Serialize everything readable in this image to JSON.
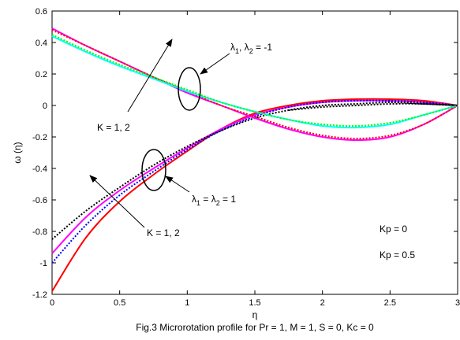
{
  "chart_data": {
    "type": "line",
    "xlabel": "η",
    "ylabel": "ω (η)",
    "caption": "Fig.3 Microrotation profile for Pr = 1, M = 1, S = 0, Kc = 0",
    "xlim": [
      0,
      3
    ],
    "ylim": [
      -1.2,
      0.6
    ],
    "xticks": [
      0,
      0.5,
      1,
      1.5,
      2,
      2.5,
      3
    ],
    "xtick_labels": [
      "0",
      "0.5",
      "1",
      "1.5",
      "2",
      "2.5",
      "3"
    ],
    "yticks": [
      -1.2,
      -1,
      -0.8,
      -0.6,
      -0.4,
      -0.2,
      0,
      0.2,
      0.4,
      0.6
    ],
    "ytick_labels": [
      "-1.2",
      "-1",
      "-0.8",
      "-0.6",
      "-0.4",
      "-0.2",
      "0",
      "0.2",
      "0.4",
      "0.6"
    ],
    "grid": false,
    "series": [
      {
        "color": "#ff0000",
        "dash": "solid",
        "x": [
          0,
          0.25,
          0.5,
          0.75,
          1,
          1.25,
          1.5,
          1.75,
          2,
          2.25,
          2.5,
          2.75,
          3
        ],
        "y": [
          -1.18,
          -0.84,
          -0.61,
          -0.44,
          -0.29,
          -0.15,
          -0.05,
          0.0,
          0.03,
          0.04,
          0.04,
          0.03,
          0.0
        ]
      },
      {
        "color": "#ff00ff",
        "dash": "solid",
        "x": [
          0,
          0.25,
          0.5,
          0.75,
          1,
          1.25,
          1.5,
          1.75,
          2,
          2.25,
          2.5,
          2.75,
          3
        ],
        "y": [
          -0.94,
          -0.71,
          -0.54,
          -0.4,
          -0.27,
          -0.15,
          -0.06,
          -0.01,
          0.02,
          0.03,
          0.03,
          0.02,
          0.0
        ]
      },
      {
        "color": "#0000ff",
        "dash": "dotted",
        "x": [
          0,
          0.25,
          0.5,
          0.75,
          1,
          1.25,
          1.5,
          1.75,
          2,
          2.25,
          2.5,
          2.75,
          3
        ],
        "y": [
          -1.0,
          -0.76,
          -0.57,
          -0.42,
          -0.28,
          -0.16,
          -0.07,
          -0.01,
          0.02,
          0.03,
          0.03,
          0.02,
          0.0
        ]
      },
      {
        "color": "#000000",
        "dash": "dotted",
        "x": [
          0,
          0.25,
          0.5,
          0.75,
          1,
          1.25,
          1.5,
          1.75,
          2,
          2.25,
          2.5,
          2.75,
          3
        ],
        "y": [
          -0.85,
          -0.67,
          -0.52,
          -0.38,
          -0.26,
          -0.16,
          -0.08,
          -0.03,
          0.0,
          0.01,
          0.02,
          0.01,
          0.0
        ]
      },
      {
        "color": "#ff00ff",
        "dash": "solid",
        "x": [
          0,
          0.25,
          0.5,
          0.75,
          1,
          1.25,
          1.5,
          1.75,
          2,
          2.25,
          2.5,
          2.75,
          3
        ],
        "y": [
          0.49,
          0.38,
          0.28,
          0.18,
          0.08,
          0.0,
          -0.08,
          -0.15,
          -0.2,
          -0.22,
          -0.2,
          -0.12,
          0.0
        ]
      },
      {
        "color": "#ff0000",
        "dash": "dotted",
        "x": [
          0,
          0.25,
          0.5,
          0.75,
          1,
          1.25,
          1.5,
          1.75,
          2,
          2.25,
          2.5,
          2.75,
          3
        ],
        "y": [
          0.48,
          0.38,
          0.28,
          0.18,
          0.09,
          0.0,
          -0.07,
          -0.14,
          -0.19,
          -0.21,
          -0.19,
          -0.12,
          0.0
        ]
      },
      {
        "color": "#00ffff",
        "dash": "solid",
        "x": [
          0,
          0.25,
          0.5,
          0.75,
          1,
          1.25,
          1.5,
          1.75,
          2,
          2.25,
          2.5,
          2.75,
          3
        ],
        "y": [
          0.44,
          0.34,
          0.25,
          0.17,
          0.09,
          0.02,
          -0.04,
          -0.09,
          -0.13,
          -0.14,
          -0.12,
          -0.06,
          0.0
        ]
      },
      {
        "color": "#00ff00",
        "dash": "dotted",
        "x": [
          0,
          0.25,
          0.5,
          0.75,
          1,
          1.25,
          1.5,
          1.75,
          2,
          2.25,
          2.5,
          2.75,
          3
        ],
        "y": [
          0.45,
          0.35,
          0.26,
          0.18,
          0.1,
          0.02,
          -0.04,
          -0.09,
          -0.12,
          -0.13,
          -0.11,
          -0.06,
          0.0
        ]
      },
      {
        "color": "#000000",
        "dash": "dotted",
        "x": [
          1.75,
          2,
          2.25,
          2.5,
          2.75,
          3
        ],
        "y": [
          -0.03,
          -0.01,
          0.0,
          0.01,
          0.01,
          0.0
        ]
      }
    ],
    "annotations": {
      "lambda_top_sym": "λ",
      "lambda_top_sub1": "1",
      "lambda_top_mid": ", λ",
      "lambda_top_sub2": "2",
      "lambda_top_end": " = -1",
      "k_top": "K = 1, 2",
      "lambda_bot_sym": "λ",
      "lambda_bot_sub1": "1",
      "lambda_bot_mid": " = λ",
      "lambda_bot_sub2": "2",
      "lambda_bot_end": " = 1",
      "k_bot": "K = 1, 2",
      "kp0": "Kp = 0",
      "kp05": "Kp = 0.5"
    }
  }
}
